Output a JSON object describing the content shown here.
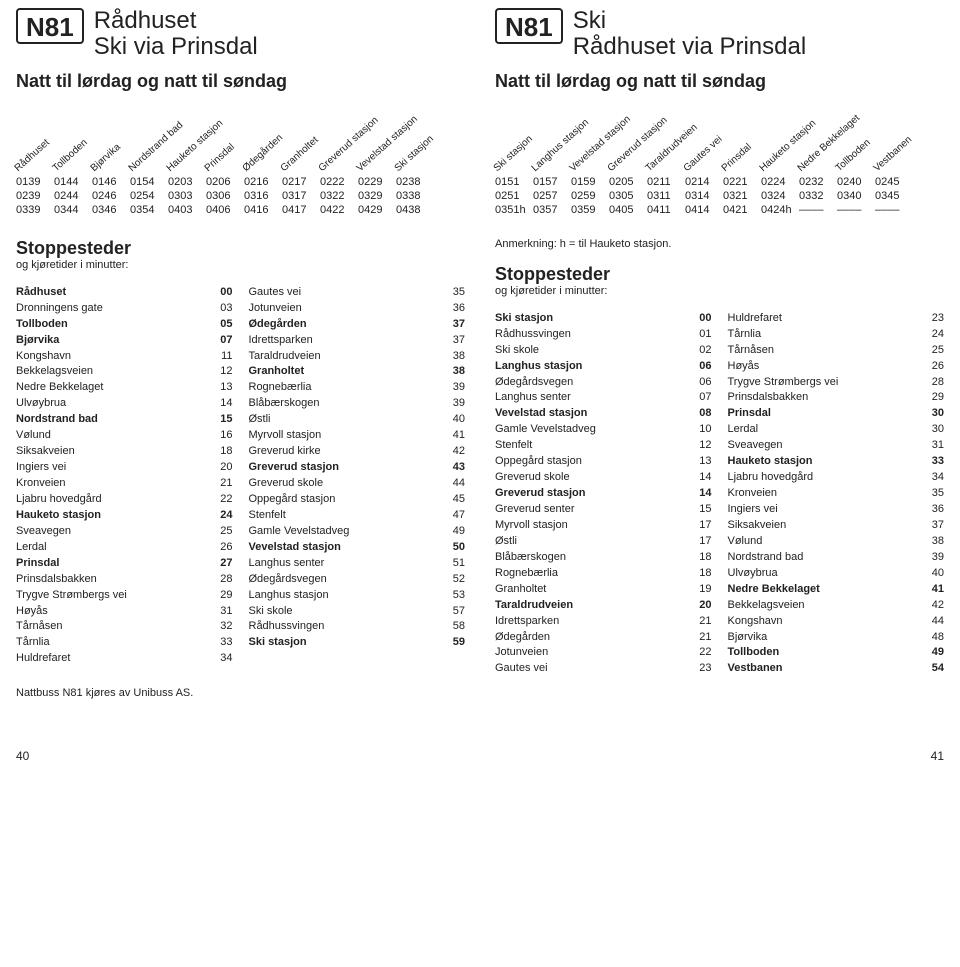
{
  "left": {
    "route": "N81",
    "title1": "Rådhuset",
    "title2": "Ski via Prinsdal",
    "subtitle": "Natt til lørdag og natt til søndag",
    "tt_headers": [
      "Rådhuset",
      "Tollboden",
      "Bjørvika",
      "Nordstrand bad",
      "Hauketo stasjon",
      "Prinsdal",
      "Ødegården",
      "Granholtet",
      "Greverud stasjon",
      "Vevelstad stasjon",
      "Ski stasjon"
    ],
    "tt_rows": [
      [
        "0139",
        "0144",
        "0146",
        "0154",
        "0203",
        "0206",
        "0216",
        "0217",
        "0222",
        "0229",
        "0238"
      ],
      [
        "0239",
        "0244",
        "0246",
        "0254",
        "0303",
        "0306",
        "0316",
        "0317",
        "0322",
        "0329",
        "0338"
      ],
      [
        "0339",
        "0344",
        "0346",
        "0354",
        "0403",
        "0406",
        "0416",
        "0417",
        "0422",
        "0429",
        "0438"
      ]
    ],
    "stops_title": "Stoppesteder",
    "stops_sub": "og kjøretider i minutter:",
    "stops": [
      {
        "n": "Rådhuset",
        "m": "00",
        "b": true
      },
      {
        "n": "Dronningens gate",
        "m": "03"
      },
      {
        "n": "Tollboden",
        "m": "05",
        "b": true
      },
      {
        "n": "Bjørvika",
        "m": "07",
        "b": true
      },
      {
        "n": "Kongshavn",
        "m": "11"
      },
      {
        "n": "Bekkelagsveien",
        "m": "12"
      },
      {
        "n": "Nedre Bekkelaget",
        "m": "13"
      },
      {
        "n": "Ulvøybrua",
        "m": "14"
      },
      {
        "n": "Nordstrand bad",
        "m": "15",
        "b": true
      },
      {
        "n": "Vølund",
        "m": "16"
      },
      {
        "n": "Siksakveien",
        "m": "18"
      },
      {
        "n": "Ingiers vei",
        "m": "20"
      },
      {
        "n": "Kronveien",
        "m": "21"
      },
      {
        "n": "Ljabru hovedgård",
        "m": "22"
      },
      {
        "n": "Hauketo stasjon",
        "m": "24",
        "b": true
      },
      {
        "n": "Sveavegen",
        "m": "25"
      },
      {
        "n": "Lerdal",
        "m": "26"
      },
      {
        "n": "Prinsdal",
        "m": "27",
        "b": true
      },
      {
        "n": "Prinsdalsbakken",
        "m": "28"
      },
      {
        "n": "Trygve Strømbergs vei",
        "m": "29"
      },
      {
        "n": "Høyås",
        "m": "31"
      },
      {
        "n": "Tårnåsen",
        "m": "32"
      },
      {
        "n": "Tårnlia",
        "m": "33"
      },
      {
        "n": "Huldrefaret",
        "m": "34"
      },
      {
        "n": "Gautes vei",
        "m": "35"
      },
      {
        "n": "Jotunveien",
        "m": "36"
      },
      {
        "n": "Ødegården",
        "m": "37",
        "b": true
      },
      {
        "n": "Idrettsparken",
        "m": "37"
      },
      {
        "n": "Taraldrudveien",
        "m": "38"
      },
      {
        "n": "Granholtet",
        "m": "38",
        "b": true
      },
      {
        "n": "Rognebærlia",
        "m": "39"
      },
      {
        "n": "Blåbærskogen",
        "m": "39"
      },
      {
        "n": "Østli",
        "m": "40"
      },
      {
        "n": "Myrvoll stasjon",
        "m": "41"
      },
      {
        "n": "Greverud kirke",
        "m": "42"
      },
      {
        "n": "Greverud stasjon",
        "m": "43",
        "b": true
      },
      {
        "n": "Greverud skole",
        "m": "44"
      },
      {
        "n": "Oppegård stasjon",
        "m": "45"
      },
      {
        "n": "Stenfelt",
        "m": "47"
      },
      {
        "n": "Gamle Vevelstadveg",
        "m": "49"
      },
      {
        "n": "Vevelstad stasjon",
        "m": "50",
        "b": true
      },
      {
        "n": "Langhus senter",
        "m": "51"
      },
      {
        "n": "Ødegårdsvegen",
        "m": "52"
      },
      {
        "n": "Langhus stasjon",
        "m": "53"
      },
      {
        "n": "Ski skole",
        "m": "57"
      },
      {
        "n": "Rådhussvingen",
        "m": "58"
      },
      {
        "n": "Ski stasjon",
        "m": "59",
        "b": true
      }
    ],
    "stops_split": 24,
    "operator": "Nattbuss N81 kjøres av Unibuss AS."
  },
  "right": {
    "route": "N81",
    "title1": "Ski",
    "title2": "Rådhuset via Prinsdal",
    "subtitle": "Natt til lørdag og natt til søndag",
    "tt_headers": [
      "Ski stasjon",
      "Langhus stasjon",
      "Vevelstad stasjon",
      "Greverud stasjon",
      "Taraldrudveien",
      "Gautes vei",
      "Prinsdal",
      "Hauketo stasjon",
      "Nedre Bekkelaget",
      "Tollboden",
      "Vestbanen"
    ],
    "tt_rows": [
      [
        "0151",
        "0157",
        "0159",
        "0205",
        "0211",
        "0214",
        "0221",
        "0224",
        "0232",
        "0240",
        "0245"
      ],
      [
        "0251",
        "0257",
        "0259",
        "0305",
        "0311",
        "0314",
        "0321",
        "0324",
        "0332",
        "0340",
        "0345"
      ],
      [
        "0351h",
        "0357",
        "0359",
        "0405",
        "0411",
        "0414",
        "0421",
        "0424h",
        "––––",
        "––––",
        "––––"
      ]
    ],
    "note": "Anmerkning: h = til Hauketo stasjon.",
    "stops_title": "Stoppesteder",
    "stops_sub": "og kjøretider i minutter:",
    "stops": [
      {
        "n": "Ski stasjon",
        "m": "00",
        "b": true
      },
      {
        "n": "Rådhussvingen",
        "m": "01"
      },
      {
        "n": "Ski skole",
        "m": "02"
      },
      {
        "n": "Langhus stasjon",
        "m": "06",
        "b": true
      },
      {
        "n": "Ødegårdsvegen",
        "m": "06"
      },
      {
        "n": "Langhus senter",
        "m": "07"
      },
      {
        "n": "Vevelstad stasjon",
        "m": "08",
        "b": true
      },
      {
        "n": "Gamle Vevelstadveg",
        "m": "10"
      },
      {
        "n": "Stenfelt",
        "m": "12"
      },
      {
        "n": "Oppegård stasjon",
        "m": "13"
      },
      {
        "n": "Greverud skole",
        "m": "14"
      },
      {
        "n": "Greverud stasjon",
        "m": "14",
        "b": true
      },
      {
        "n": "Greverud senter",
        "m": "15"
      },
      {
        "n": "Myrvoll stasjon",
        "m": "17"
      },
      {
        "n": "Østli",
        "m": "17"
      },
      {
        "n": "Blåbærskogen",
        "m": "18"
      },
      {
        "n": "Rognebærlia",
        "m": "18"
      },
      {
        "n": "Granholtet",
        "m": "19"
      },
      {
        "n": "Taraldrudveien",
        "m": "20",
        "b": true
      },
      {
        "n": "Idrettsparken",
        "m": "21"
      },
      {
        "n": "Ødegården",
        "m": "21"
      },
      {
        "n": "Jotunveien",
        "m": "22"
      },
      {
        "n": "Gautes vei",
        "m": "23"
      },
      {
        "n": "Huldrefaret",
        "m": "23"
      },
      {
        "n": "Tårnlia",
        "m": "24"
      },
      {
        "n": "Tårnåsen",
        "m": "25"
      },
      {
        "n": "Høyås",
        "m": "26"
      },
      {
        "n": "Trygve Strømbergs vei",
        "m": "28"
      },
      {
        "n": "Prinsdalsbakken",
        "m": "29"
      },
      {
        "n": "Prinsdal",
        "m": "30",
        "b": true
      },
      {
        "n": "Lerdal",
        "m": "30"
      },
      {
        "n": "Sveavegen",
        "m": "31"
      },
      {
        "n": "Hauketo stasjon",
        "m": "33",
        "b": true
      },
      {
        "n": "Ljabru hovedgård",
        "m": "34"
      },
      {
        "n": "Kronveien",
        "m": "35"
      },
      {
        "n": "Ingiers vei",
        "m": "36"
      },
      {
        "n": "Siksakveien",
        "m": "37"
      },
      {
        "n": "Vølund",
        "m": "38"
      },
      {
        "n": "Nordstrand bad",
        "m": "39"
      },
      {
        "n": "Ulvøybrua",
        "m": "40"
      },
      {
        "n": "Nedre Bekkelaget",
        "m": "41",
        "b": true
      },
      {
        "n": "Bekkelagsveien",
        "m": "42"
      },
      {
        "n": "Kongshavn",
        "m": "44"
      },
      {
        "n": "Bjørvika",
        "m": "48"
      },
      {
        "n": "Tollboden",
        "m": "49",
        "b": true
      },
      {
        "n": "Vestbanen",
        "m": "54",
        "b": true
      }
    ],
    "stops_split": 23
  },
  "page_left": "40",
  "page_right": "41",
  "colors": {
    "text": "#222222",
    "border": "#222222",
    "bg": "#ffffff"
  }
}
